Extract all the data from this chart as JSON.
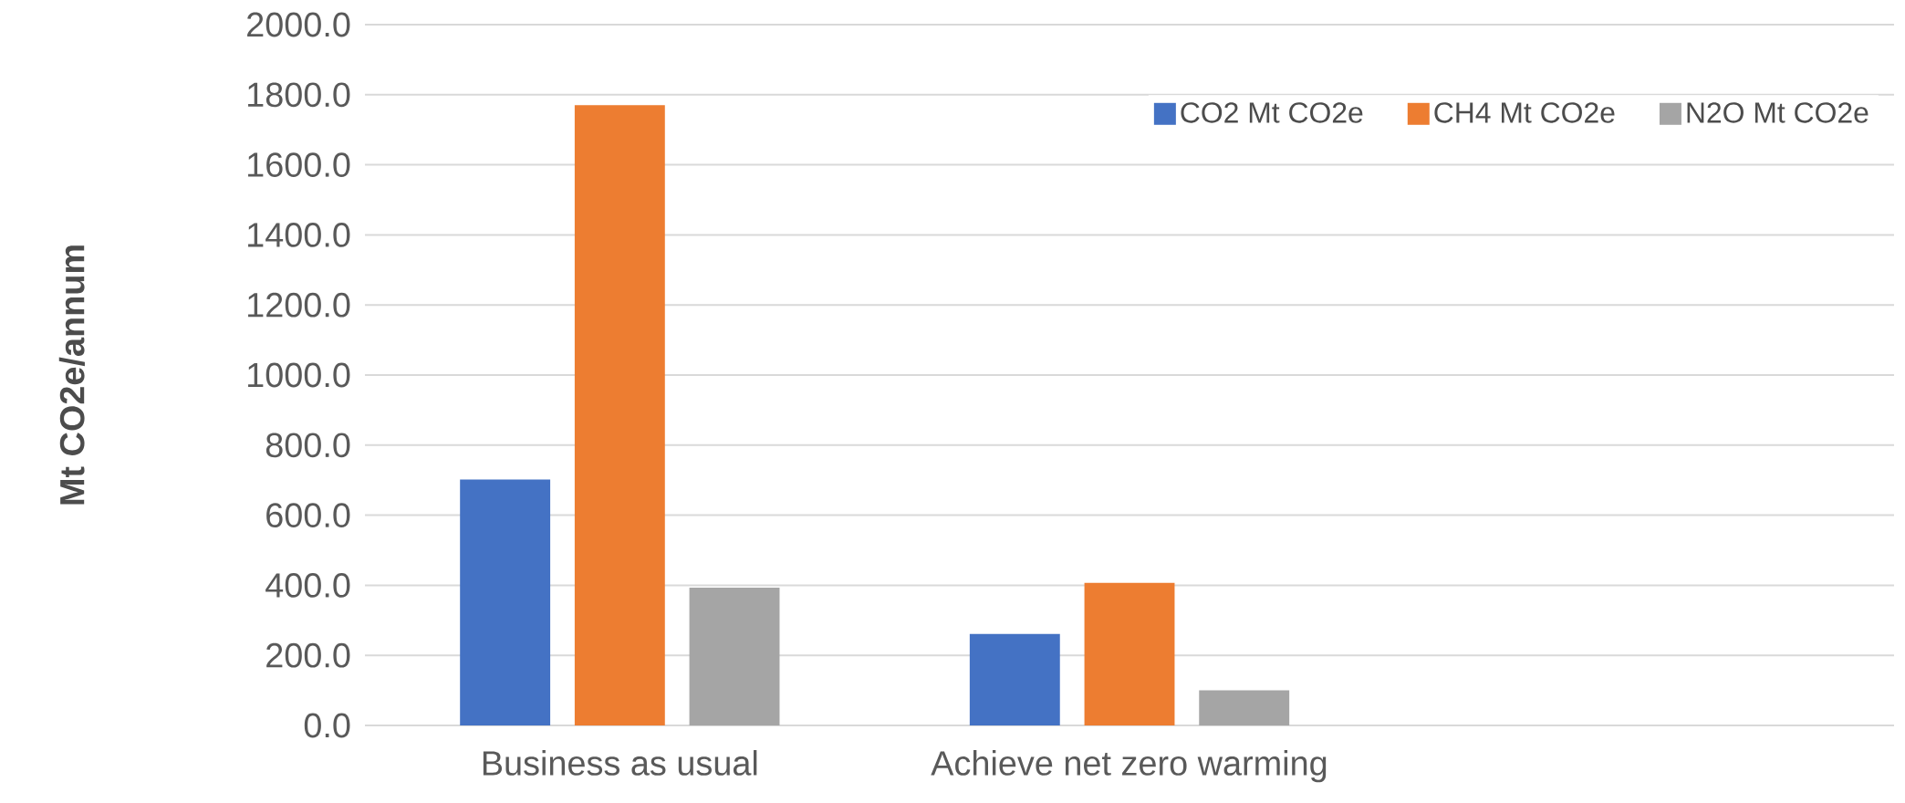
{
  "chart_data": {
    "type": "bar",
    "ylabel": "Mt CO2e/annum",
    "categories": [
      "Business as usual",
      "Achieve net zero warming",
      null
    ],
    "series": [
      {
        "name": "CO2 Mt CO2e",
        "color": "#4472c4",
        "values": [
          702,
          261,
          null
        ]
      },
      {
        "name": "CH4 Mt CO2e",
        "color": "#ed7d31",
        "values": [
          1770,
          407,
          null
        ]
      },
      {
        "name": "N2O Mt CO2e",
        "color": "#a5a5a5",
        "values": [
          393,
          100,
          null
        ]
      }
    ],
    "ylim": [
      0,
      2000
    ],
    "yticks": [
      {
        "value": 0,
        "label": "0.0"
      },
      {
        "value": 200,
        "label": "200.0"
      },
      {
        "value": 400,
        "label": "400.0"
      },
      {
        "value": 600,
        "label": "600.0"
      },
      {
        "value": 800,
        "label": "800.0"
      },
      {
        "value": 1000,
        "label": "1000.0"
      },
      {
        "value": 1200,
        "label": "1200.0"
      },
      {
        "value": 1400,
        "label": "1400.0"
      },
      {
        "value": 1600,
        "label": "1600.0"
      },
      {
        "value": 1800,
        "label": "1800.0"
      },
      {
        "value": 2000,
        "label": "2000.0"
      }
    ],
    "grid": "y",
    "legend": "top right"
  }
}
